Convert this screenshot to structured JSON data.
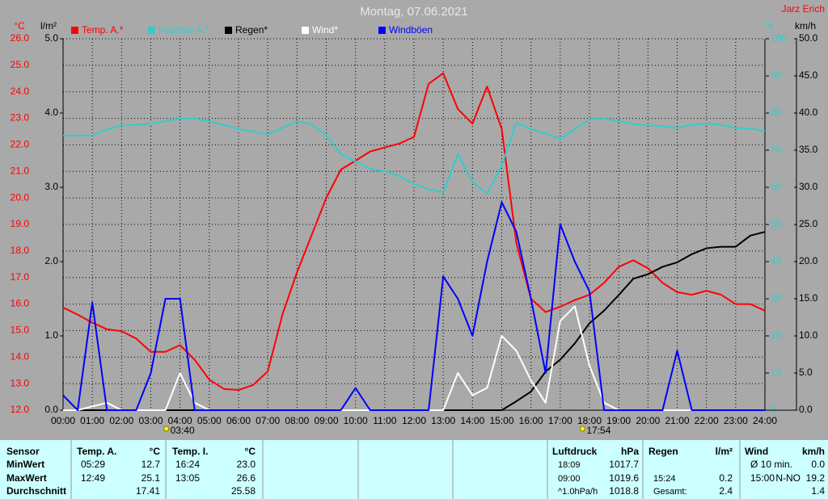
{
  "chart_data": {
    "type": "line",
    "title": "Montag, 07.06.2021",
    "author": "Jarz Erich",
    "y_label": "°C",
    "y2_label": "l/m²",
    "y3_label": "%",
    "y4_label": "km/h",
    "x": [
      0,
      0.5,
      1,
      1.5,
      2,
      2.5,
      3,
      3.5,
      4,
      4.5,
      5,
      5.5,
      6,
      6.5,
      7,
      7.5,
      8,
      8.5,
      9,
      9.5,
      10,
      10.5,
      11,
      11.5,
      12,
      12.5,
      13,
      13.5,
      14,
      14.5,
      15,
      15.5,
      16,
      16.5,
      17,
      17.5,
      18,
      18.5,
      19,
      19.5,
      20,
      20.5,
      21,
      21.5,
      22,
      22.5,
      23,
      23.5,
      24
    ],
    "xlim": [
      0,
      24
    ],
    "xticks": [
      {
        "value": 0,
        "label": "00:00"
      },
      {
        "value": 1,
        "label": "01:00"
      },
      {
        "value": 2,
        "label": "02:00"
      },
      {
        "value": 3,
        "label": "03:00"
      },
      {
        "value": 4,
        "label": "04:00"
      },
      {
        "value": 5,
        "label": "05:00"
      },
      {
        "value": 6,
        "label": "06:00"
      },
      {
        "value": 7,
        "label": "07:00"
      },
      {
        "value": 8,
        "label": "08:00"
      },
      {
        "value": 9,
        "label": "09:00"
      },
      {
        "value": 10,
        "label": "10:00"
      },
      {
        "value": 11,
        "label": "11:00"
      },
      {
        "value": 12,
        "label": "12:00"
      },
      {
        "value": 13,
        "label": "13:00"
      },
      {
        "value": 14,
        "label": "14:00"
      },
      {
        "value": 15,
        "label": "15:00"
      },
      {
        "value": 16,
        "label": "16:00"
      },
      {
        "value": 17,
        "label": "17:00"
      },
      {
        "value": 18,
        "label": "18:00"
      },
      {
        "value": 19,
        "label": "19:00"
      },
      {
        "value": 20,
        "label": "20:00"
      },
      {
        "value": 21,
        "label": "21:00"
      },
      {
        "value": 22,
        "label": "22:00"
      },
      {
        "value": 23,
        "label": "23:00"
      },
      {
        "value": 24,
        "label": "24:00"
      }
    ],
    "ylim": [
      12,
      26
    ],
    "yticks": [
      {
        "value": 12,
        "label": "12.0"
      },
      {
        "value": 13,
        "label": "13.0"
      },
      {
        "value": 14,
        "label": "14.0"
      },
      {
        "value": 15,
        "label": "15.0"
      },
      {
        "value": 16,
        "label": "16.0"
      },
      {
        "value": 17,
        "label": "17.0"
      },
      {
        "value": 18,
        "label": "18.0"
      },
      {
        "value": 19,
        "label": "19.0"
      },
      {
        "value": 20,
        "label": "20.0"
      },
      {
        "value": 21,
        "label": "21.0"
      },
      {
        "value": 22,
        "label": "22.0"
      },
      {
        "value": 23,
        "label": "23.0"
      },
      {
        "value": 24,
        "label": "24.0"
      },
      {
        "value": 25,
        "label": "25.0"
      },
      {
        "value": 26,
        "label": "26.0"
      }
    ],
    "y2lim": [
      0,
      5
    ],
    "y2ticks": [
      {
        "value": 0,
        "label": "0.0"
      },
      {
        "value": 1,
        "label": "1.0"
      },
      {
        "value": 2,
        "label": "2.0"
      },
      {
        "value": 3,
        "label": "3.0"
      },
      {
        "value": 4,
        "label": "4.0"
      },
      {
        "value": 5,
        "label": "5.0"
      }
    ],
    "y3lim": [
      0,
      100
    ],
    "y3ticks": [
      0,
      10,
      20,
      30,
      40,
      50,
      60,
      70,
      80,
      90,
      100
    ],
    "y4lim": [
      0,
      50
    ],
    "y4ticks": [
      {
        "value": 0,
        "label": "0.0"
      },
      {
        "value": 5,
        "label": "5.0"
      },
      {
        "value": 10,
        "label": "10.0"
      },
      {
        "value": 15,
        "label": "15.0"
      },
      {
        "value": 20,
        "label": "20.0"
      },
      {
        "value": 25,
        "label": "25.0"
      },
      {
        "value": 30,
        "label": "30.0"
      },
      {
        "value": 35,
        "label": "35.0"
      },
      {
        "value": 40,
        "label": "40.0"
      },
      {
        "value": 45,
        "label": "45.0"
      },
      {
        "value": 50,
        "label": "50.0"
      }
    ],
    "grid": true,
    "series": [
      {
        "name": "Temp. A.*",
        "color": "#ff0000",
        "axis": "y",
        "values": [
          15.87,
          15.6,
          15.3,
          15.05,
          14.98,
          14.7,
          14.2,
          14.2,
          14.45,
          13.9,
          13.15,
          12.8,
          12.76,
          12.95,
          13.46,
          15.6,
          17.2,
          18.6,
          20.0,
          21.07,
          21.4,
          21.75,
          21.9,
          22.05,
          22.3,
          24.3,
          24.7,
          23.35,
          22.8,
          24.2,
          22.6,
          18.3,
          16.2,
          15.7,
          15.9,
          16.15,
          16.35,
          16.8,
          17.4,
          17.65,
          17.35,
          16.8,
          16.45,
          16.35,
          16.5,
          16.35,
          16.0,
          16.0,
          15.75
        ]
      },
      {
        "name": "Feuchte A.*",
        "color": "#33cccc",
        "axis": "y3",
        "values": [
          73.9,
          73.9,
          74,
          75.5,
          76.7,
          76.8,
          77.2,
          77.8,
          78.5,
          78.5,
          77.8,
          76.8,
          75.7,
          75,
          74.3,
          76,
          77.8,
          77,
          74,
          69,
          67,
          65,
          64.3,
          63,
          60.9,
          59.5,
          58.7,
          69,
          61.3,
          58.3,
          65.9,
          77.4,
          75.7,
          74.5,
          73,
          75.7,
          78.3,
          78.5,
          77.8,
          77,
          76.7,
          76.5,
          76,
          76.8,
          77.2,
          76.8,
          76,
          75.8,
          75.2
        ]
      },
      {
        "name": "Regen*",
        "color": "#000000",
        "axis": "y2",
        "values": [
          0,
          0,
          0,
          0,
          0,
          0,
          0,
          0,
          0,
          0,
          0,
          0,
          0,
          0,
          0,
          0,
          0,
          0,
          0,
          0,
          0,
          0,
          0,
          0,
          0,
          0,
          0,
          0,
          0,
          0,
          0,
          0.12,
          0.25,
          0.52,
          0.68,
          0.9,
          1.17,
          1.34,
          1.55,
          1.77,
          1.83,
          1.93,
          1.99,
          2.1,
          2.18,
          2.2,
          2.2,
          2.35,
          2.4
        ]
      },
      {
        "name": "Wind*",
        "color": "#ffffff",
        "axis": "y4",
        "values": [
          0,
          0,
          0.5,
          1,
          0,
          0,
          0,
          0,
          5,
          1,
          0,
          0,
          0,
          0,
          0,
          0,
          0,
          0,
          0,
          0,
          0,
          0,
          0,
          0,
          0,
          0,
          0,
          5,
          2,
          3,
          10,
          8,
          4,
          1,
          12,
          14,
          6,
          1,
          0,
          0,
          0,
          0,
          0,
          0,
          0,
          0,
          0,
          0,
          0
        ]
      },
      {
        "name": "Windböen",
        "color": "#0000ff",
        "axis": "y4",
        "values": [
          2,
          0,
          14.5,
          0,
          0,
          0,
          5,
          15,
          15,
          0,
          0,
          0,
          0,
          0,
          0,
          0,
          0,
          0,
          0,
          0,
          3,
          0,
          0,
          0,
          0,
          0,
          18,
          15,
          10,
          20,
          28,
          24,
          15,
          5,
          25,
          20,
          16,
          0,
          0,
          0,
          0,
          0,
          8,
          0,
          0,
          0,
          0,
          0,
          0
        ]
      }
    ],
    "annotations": [
      {
        "x": 3.667,
        "text": "03:40"
      },
      {
        "x": 17.9,
        "text": "17:54"
      }
    ]
  },
  "table": {
    "sensor": {
      "header": "Sensor",
      "labels": [
        "MinWert",
        "MaxWert",
        "Durchschnitt"
      ]
    },
    "temp_a": {
      "header": "Temp. A.",
      "unit": "°C",
      "min": {
        "time": "05:29",
        "value": "12.7"
      },
      "max": {
        "time": "12:49",
        "value": "25.1"
      },
      "avg": {
        "value": "17.41"
      }
    },
    "temp_i": {
      "header": "Temp. I.",
      "unit": "°C",
      "min": {
        "time": "16:24",
        "value": "23.0"
      },
      "max": {
        "time": "13:05",
        "value": "26.6"
      },
      "avg": {
        "value": "25.58"
      }
    },
    "pressure": {
      "header": "Luftdruck",
      "unit": "hPa",
      "min": {
        "time": "18:09",
        "value": "1017.7"
      },
      "max": {
        "time": "09:00",
        "value": "1019.6"
      },
      "avg": {
        "time": "^1.0hPa/h",
        "value": "1018.8"
      }
    },
    "rain": {
      "header": "Regen",
      "unit": "l/m²",
      "max": {
        "time": "15:24",
        "value": "0.2"
      },
      "avg": {
        "time": "Gesamt:",
        "value": "2.4"
      }
    },
    "wind": {
      "header": "Wind",
      "unit": "km/h",
      "min": {
        "time": "Ø 10 min.",
        "value": "0.0"
      },
      "max": {
        "time": "15:00",
        "dir": "N-NO",
        "value": "19.2"
      },
      "avg": {
        "value": "1.4"
      }
    }
  }
}
